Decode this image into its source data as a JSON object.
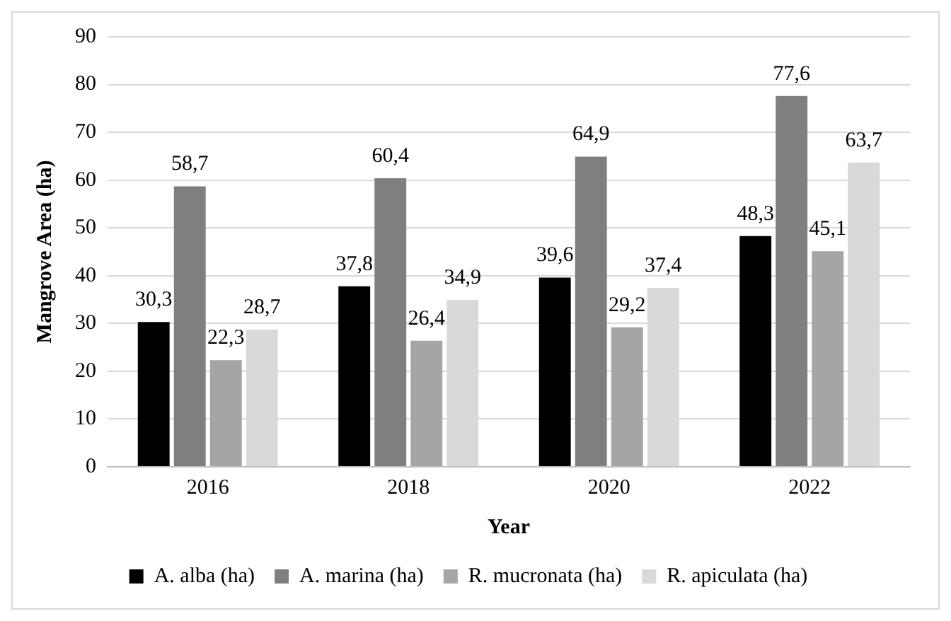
{
  "chart_data": {
    "type": "bar",
    "xlabel": "Year",
    "ylabel": "Mangrove Area (ha)",
    "categories": [
      "2016",
      "2018",
      "2020",
      "2022"
    ],
    "series": [
      {
        "name": "A. alba (ha)",
        "color": "#000000",
        "values": [
          30.3,
          37.8,
          39.6,
          48.3
        ],
        "value_labels": [
          "30,3",
          "37,8",
          "39,6",
          "48,3"
        ]
      },
      {
        "name": "A. marina (ha)",
        "color": "#7f7f7f",
        "values": [
          58.7,
          60.4,
          64.9,
          77.6
        ],
        "value_labels": [
          "58,7",
          "60,4",
          "64,9",
          "77,6"
        ]
      },
      {
        "name": "R. mucronata (ha)",
        "color": "#a5a5a5",
        "values": [
          22.3,
          26.4,
          29.2,
          45.1
        ],
        "value_labels": [
          "22,3",
          "26,4",
          "29,2",
          "45,1"
        ]
      },
      {
        "name": "R. apiculata (ha)",
        "color": "#d9d9d9",
        "values": [
          28.7,
          34.9,
          37.4,
          63.7
        ],
        "value_labels": [
          "28,7",
          "34,9",
          "37,4",
          "63,7"
        ]
      }
    ],
    "ylim": [
      0,
      90
    ],
    "yticks": [
      0,
      10,
      20,
      30,
      40,
      50,
      60,
      70,
      80,
      90
    ],
    "grid": "y",
    "legend": "bottom"
  }
}
